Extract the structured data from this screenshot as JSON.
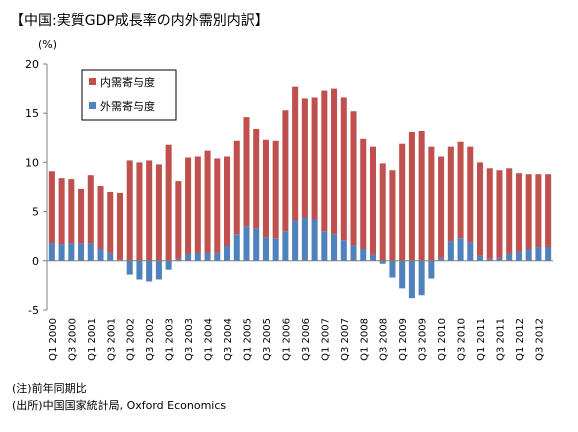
{
  "title": "【中国:実質GDP成長率の内外需別内訳】",
  "unit_label": "(%)",
  "notes": {
    "note": "(注)前年同期比",
    "source": "(出所)中国国家統計局, Oxford Economics"
  },
  "colors": {
    "domestic": "#c0504d",
    "external": "#4f81bd",
    "axis": "#808080"
  },
  "chart_data": {
    "type": "bar",
    "stacked": true,
    "title": "",
    "ylabel": "(%)",
    "ylim": [
      -5,
      20
    ],
    "yticks": [
      -5,
      0,
      5,
      10,
      15,
      20
    ],
    "grid": false,
    "legend_position": "top-left",
    "categories": [
      "Q1 2000",
      "Q2 2000",
      "Q3 2000",
      "Q4 2000",
      "Q1 2001",
      "Q2 2001",
      "Q3 2001",
      "Q4 2001",
      "Q1 2002",
      "Q2 2002",
      "Q3 2002",
      "Q4 2002",
      "Q1 2003",
      "Q2 2003",
      "Q3 2003",
      "Q4 2003",
      "Q1 2004",
      "Q2 2004",
      "Q3 2004",
      "Q4 2004",
      "Q1 2005",
      "Q2 2005",
      "Q3 2005",
      "Q4 2005",
      "Q1 2006",
      "Q2 2006",
      "Q3 2006",
      "Q4 2006",
      "Q1 2007",
      "Q2 2007",
      "Q3 2007",
      "Q4 2007",
      "Q1 2008",
      "Q2 2008",
      "Q3 2008",
      "Q4 2008",
      "Q1 2009",
      "Q2 2009",
      "Q3 2009",
      "Q4 2009",
      "Q1 2010",
      "Q2 2010",
      "Q3 2010",
      "Q4 2010",
      "Q1 2011",
      "Q2 2011",
      "Q3 2011",
      "Q4 2011",
      "Q1 2012",
      "Q2 2012",
      "Q3 2012",
      "Q4 2012"
    ],
    "tick_labels": [
      "Q1 2000",
      "Q3 2000",
      "Q1 2001",
      "Q3 2001",
      "Q1 2002",
      "Q3 2002",
      "Q1 2003",
      "Q3 2003",
      "Q1 2004",
      "Q3 2004",
      "Q1 2005",
      "Q3 2005",
      "Q1 2006",
      "Q3 2006",
      "Q1 2007",
      "Q3 2007",
      "Q1 2008",
      "Q3 2008",
      "Q1 2009",
      "Q3 2009",
      "Q1 2010",
      "Q3 2010",
      "Q1 2011",
      "Q3 2011",
      "Q1 2012",
      "Q3 2012"
    ],
    "series": [
      {
        "name": "内需寄与度",
        "values": [
          7.3,
          6.7,
          6.5,
          5.5,
          6.9,
          6.4,
          6.2,
          6.8,
          10.2,
          10.0,
          10.2,
          9.8,
          11.8,
          7.9,
          9.8,
          9.8,
          10.4,
          9.6,
          9.1,
          9.5,
          11.1,
          10.1,
          9.9,
          9.9,
          12.3,
          13.6,
          12.1,
          12.4,
          14.3,
          14.8,
          14.5,
          13.6,
          11.2,
          11.0,
          9.9,
          9.2,
          11.9,
          13.1,
          13.2,
          11.6,
          10.3,
          9.6,
          9.8,
          9.7,
          9.5,
          9.2,
          8.9,
          8.7,
          8.0,
          7.6,
          7.4,
          7.4
        ]
      },
      {
        "name": "外需寄与度",
        "values": [
          1.8,
          1.7,
          1.8,
          1.8,
          1.8,
          1.2,
          0.8,
          0.1,
          -1.4,
          -1.9,
          -2.1,
          -1.9,
          -0.9,
          0.2,
          0.7,
          0.8,
          0.8,
          0.8,
          1.5,
          2.7,
          3.5,
          3.3,
          2.4,
          2.3,
          3.0,
          4.1,
          4.4,
          4.2,
          3.0,
          2.7,
          2.1,
          1.6,
          1.2,
          0.6,
          -0.3,
          -1.7,
          -2.8,
          -3.8,
          -3.5,
          -1.8,
          0.3,
          2.0,
          2.3,
          1.9,
          0.5,
          0.2,
          0.3,
          0.7,
          0.9,
          1.2,
          1.4,
          1.4
        ]
      }
    ]
  }
}
